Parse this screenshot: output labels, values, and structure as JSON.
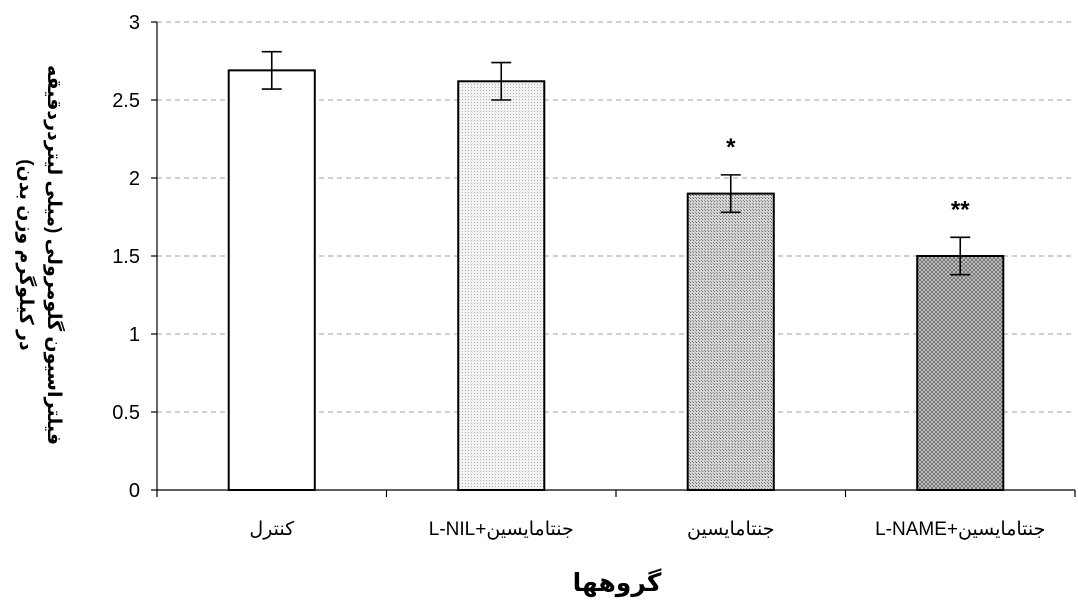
{
  "chart_data": {
    "type": "bar",
    "title": "",
    "xlabel": "گروهها",
    "ylabel": [
      "فیلتراسیون گلومرولی (میلی لیتردردقیقه",
      "در کیلوگرم وزن بدن)"
    ],
    "categories": [
      "کنترل",
      "جنتامایسین+L-NIL",
      "جنتامایسین",
      "جنتامایسین+L-NAME"
    ],
    "values": [
      2.69,
      2.62,
      1.9,
      1.5
    ],
    "errors": [
      0.12,
      0.12,
      0.12,
      0.12
    ],
    "significance": [
      "",
      "",
      "*",
      "**"
    ],
    "ylim": [
      0,
      3
    ],
    "yticks": [
      0,
      0.5,
      1,
      1.5,
      2,
      2.5,
      3
    ],
    "ytick_labels": [
      "0",
      "0.5",
      "1",
      "1.5",
      "2",
      "2.5",
      "3"
    ],
    "grid": true,
    "legend": "none",
    "bar_fills": [
      "white",
      "light-dotted",
      "medium-dotted",
      "dark-crosshatch"
    ]
  },
  "colors": {
    "axis": "#000000",
    "grid": "#a0a0a0",
    "bar_edge": "#000000"
  }
}
